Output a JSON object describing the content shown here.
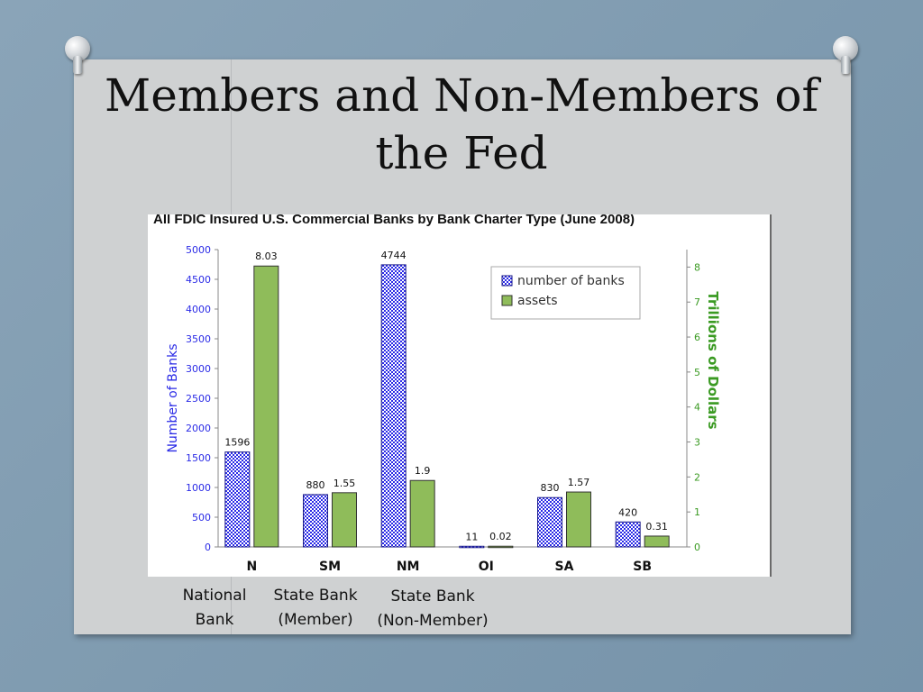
{
  "slide": {
    "title_line1": "Members and Non-Members of",
    "title_line2": "the Fed"
  },
  "captions": [
    {
      "line1": "National",
      "line2": "Bank"
    },
    {
      "line1": "State Bank",
      "line2": "(Member)"
    },
    {
      "line1": "State Bank",
      "line2": "(Non-Member)"
    }
  ],
  "colors": {
    "banks": "#2a2ae6",
    "assets": "#8fbc5a",
    "left_axis": "#2a2ae6",
    "right_axis": "#3a9a22"
  },
  "chart_data": {
    "type": "bar",
    "title": "All FDIC Insured U.S. Commercial Banks by Bank Charter Type (June 2008)",
    "categories": [
      "N",
      "SM",
      "NM",
      "OI",
      "SA",
      "SB"
    ],
    "series": [
      {
        "name": "number of banks",
        "axis": "left",
        "values": [
          1596,
          880,
          4744,
          11,
          830,
          420
        ],
        "labels": [
          "1596",
          "880",
          "4744",
          "11",
          "830",
          "420"
        ]
      },
      {
        "name": "assets",
        "axis": "right",
        "values": [
          8.03,
          1.55,
          1.9,
          0.02,
          1.57,
          0.31
        ],
        "labels": [
          "8.03",
          "1.55",
          "1.9",
          "0.02",
          "1.57",
          "0.31"
        ]
      }
    ],
    "ylabel": "Number of Banks",
    "y2label": "Trillions of Dollars",
    "ylim": [
      0,
      5000
    ],
    "y2lim": [
      0,
      8.5
    ],
    "yticks": [
      "0",
      "500",
      "1000",
      "1500",
      "2000",
      "2500",
      "3000",
      "3500",
      "4000",
      "4500",
      "5000"
    ],
    "y2ticks": [
      "0",
      "1",
      "2",
      "3",
      "4",
      "5",
      "6",
      "7",
      "8"
    ],
    "legend": "top-right",
    "grid": false
  }
}
